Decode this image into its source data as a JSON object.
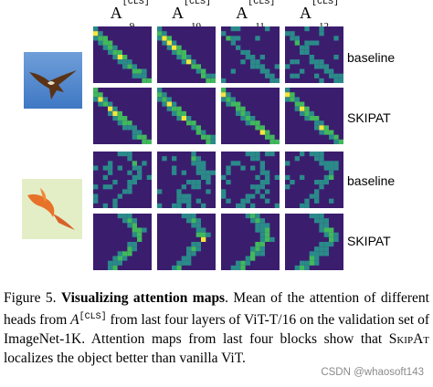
{
  "figure": {
    "columns": [
      {
        "base": "A",
        "sup": "[CLS]",
        "sub": "9"
      },
      {
        "base": "A",
        "sup": "[CLS]",
        "sub": "10"
      },
      {
        "base": "A",
        "sup": "[CLS]",
        "sub": "11"
      },
      {
        "base": "A",
        "sup": "[CLS]",
        "sub": "12"
      }
    ],
    "row_labels": [
      "baseline",
      "SKIPAT",
      "baseline",
      "SKIPAT"
    ],
    "colors": {
      "low": "#3b1d6e",
      "mid": "#2a8a8a",
      "high": "#41b85c",
      "peak": "#f4e73a"
    }
  },
  "caption": {
    "prefix": "Figure 5. ",
    "bold": "Visualizing attention maps",
    "part1": ". Mean of the attention of different heads from ",
    "symbol": "A",
    "symbol_sup": "[CLS]",
    "part2": " from last four layers of ViT-T/16 on the validation set of ImageNet-1K. Attention maps from last four blocks show that ",
    "skipat": "SkipAt",
    "part3": " localizes the object better than vanilla ViT."
  },
  "watermark": "CSDN @whaosoft143"
}
